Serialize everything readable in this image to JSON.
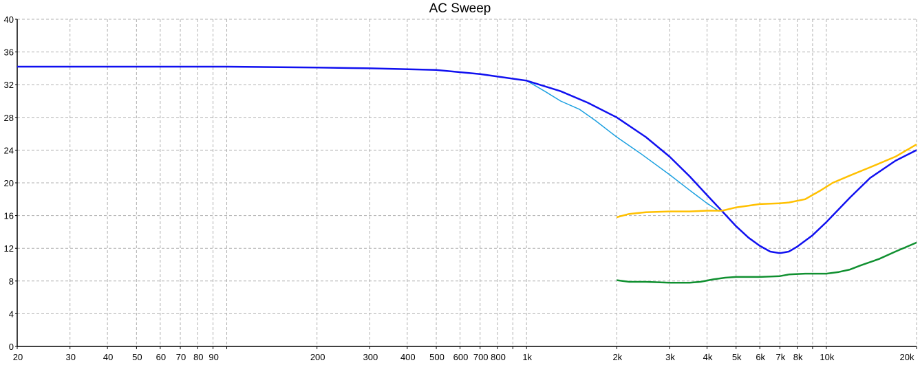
{
  "chart_data": {
    "type": "line",
    "title": "AC Sweep",
    "xlabel": "",
    "ylabel": "",
    "xscale": "log",
    "xlim": [
      20,
      20000
    ],
    "ylim": [
      0,
      40
    ],
    "grid": true,
    "yticks": [
      0,
      4,
      8,
      12,
      16,
      20,
      24,
      28,
      32,
      36,
      40
    ],
    "xticks": [
      {
        "v": 20,
        "label": "20"
      },
      {
        "v": 30,
        "label": "30"
      },
      {
        "v": 40,
        "label": "40"
      },
      {
        "v": 50,
        "label": "50"
      },
      {
        "v": 60,
        "label": "60"
      },
      {
        "v": 70,
        "label": "70"
      },
      {
        "v": 80,
        "label": "80"
      },
      {
        "v": 90,
        "label": "90"
      },
      {
        "v": 100,
        "label": ""
      },
      {
        "v": 200,
        "label": "200"
      },
      {
        "v": 300,
        "label": "300"
      },
      {
        "v": 400,
        "label": "400"
      },
      {
        "v": 500,
        "label": "500"
      },
      {
        "v": 600,
        "label": "600"
      },
      {
        "v": 700,
        "label": "700"
      },
      {
        "v": 800,
        "label": "800"
      },
      {
        "v": 900,
        "label": ""
      },
      {
        "v": 1000,
        "label": "1k"
      },
      {
        "v": 2000,
        "label": "2k"
      },
      {
        "v": 3000,
        "label": "3k"
      },
      {
        "v": 4000,
        "label": "4k"
      },
      {
        "v": 5000,
        "label": "5k"
      },
      {
        "v": 6000,
        "label": "6k"
      },
      {
        "v": 7000,
        "label": "7k"
      },
      {
        "v": 8000,
        "label": "8k"
      },
      {
        "v": 9000,
        "label": ""
      },
      {
        "v": 10000,
        "label": "10k"
      },
      {
        "v": 20000,
        "label": "20k"
      }
    ],
    "series": [
      {
        "name": "light-blue",
        "color": "#1ca0e0",
        "width": 1.5,
        "x": [
          1000,
          1150,
          1300,
          1500,
          1700,
          2000,
          2400,
          3000,
          3500,
          4000,
          4400
        ],
        "y": [
          32.5,
          31.2,
          30.0,
          29.0,
          27.6,
          25.6,
          23.6,
          21.0,
          19.1,
          17.5,
          16.5
        ]
      },
      {
        "name": "blue",
        "color": "#1010f0",
        "width": 2.5,
        "x": [
          20,
          100,
          200,
          300,
          500,
          700,
          1000,
          1300,
          1600,
          2000,
          2500,
          3000,
          3500,
          4000,
          4500,
          5000,
          5500,
          6000,
          6500,
          7000,
          7500,
          8000,
          9000,
          10000,
          12000,
          14000,
          17000,
          20000
        ],
        "y": [
          34.2,
          34.2,
          34.1,
          34.0,
          33.8,
          33.3,
          32.5,
          31.2,
          29.8,
          28.0,
          25.6,
          23.2,
          20.8,
          18.5,
          16.5,
          14.7,
          13.3,
          12.3,
          11.6,
          11.4,
          11.6,
          12.2,
          13.6,
          15.2,
          18.2,
          20.6,
          22.7,
          24.0
        ]
      },
      {
        "name": "yellow",
        "color": "#ffc000",
        "width": 2.5,
        "x": [
          2000,
          2200,
          2500,
          3000,
          3500,
          4000,
          4500,
          5000,
          5500,
          6000,
          7000,
          7500,
          8500,
          9500,
          10500,
          12000,
          14000,
          17000,
          20000
        ],
        "y": [
          15.8,
          16.2,
          16.4,
          16.5,
          16.5,
          16.6,
          16.6,
          17.0,
          17.2,
          17.4,
          17.5,
          17.6,
          18.0,
          19.0,
          20.0,
          20.9,
          21.9,
          23.2,
          24.7
        ]
      },
      {
        "name": "green",
        "color": "#109030",
        "width": 2.5,
        "x": [
          2000,
          2200,
          2500,
          3000,
          3500,
          3800,
          4200,
          4600,
          5000,
          6000,
          7000,
          7500,
          8500,
          10000,
          11000,
          12000,
          13000,
          15000,
          17000,
          20000
        ],
        "y": [
          8.1,
          7.9,
          7.9,
          7.8,
          7.8,
          7.9,
          8.2,
          8.4,
          8.5,
          8.5,
          8.6,
          8.8,
          8.9,
          8.9,
          9.1,
          9.4,
          9.9,
          10.7,
          11.6,
          12.7
        ]
      }
    ]
  }
}
